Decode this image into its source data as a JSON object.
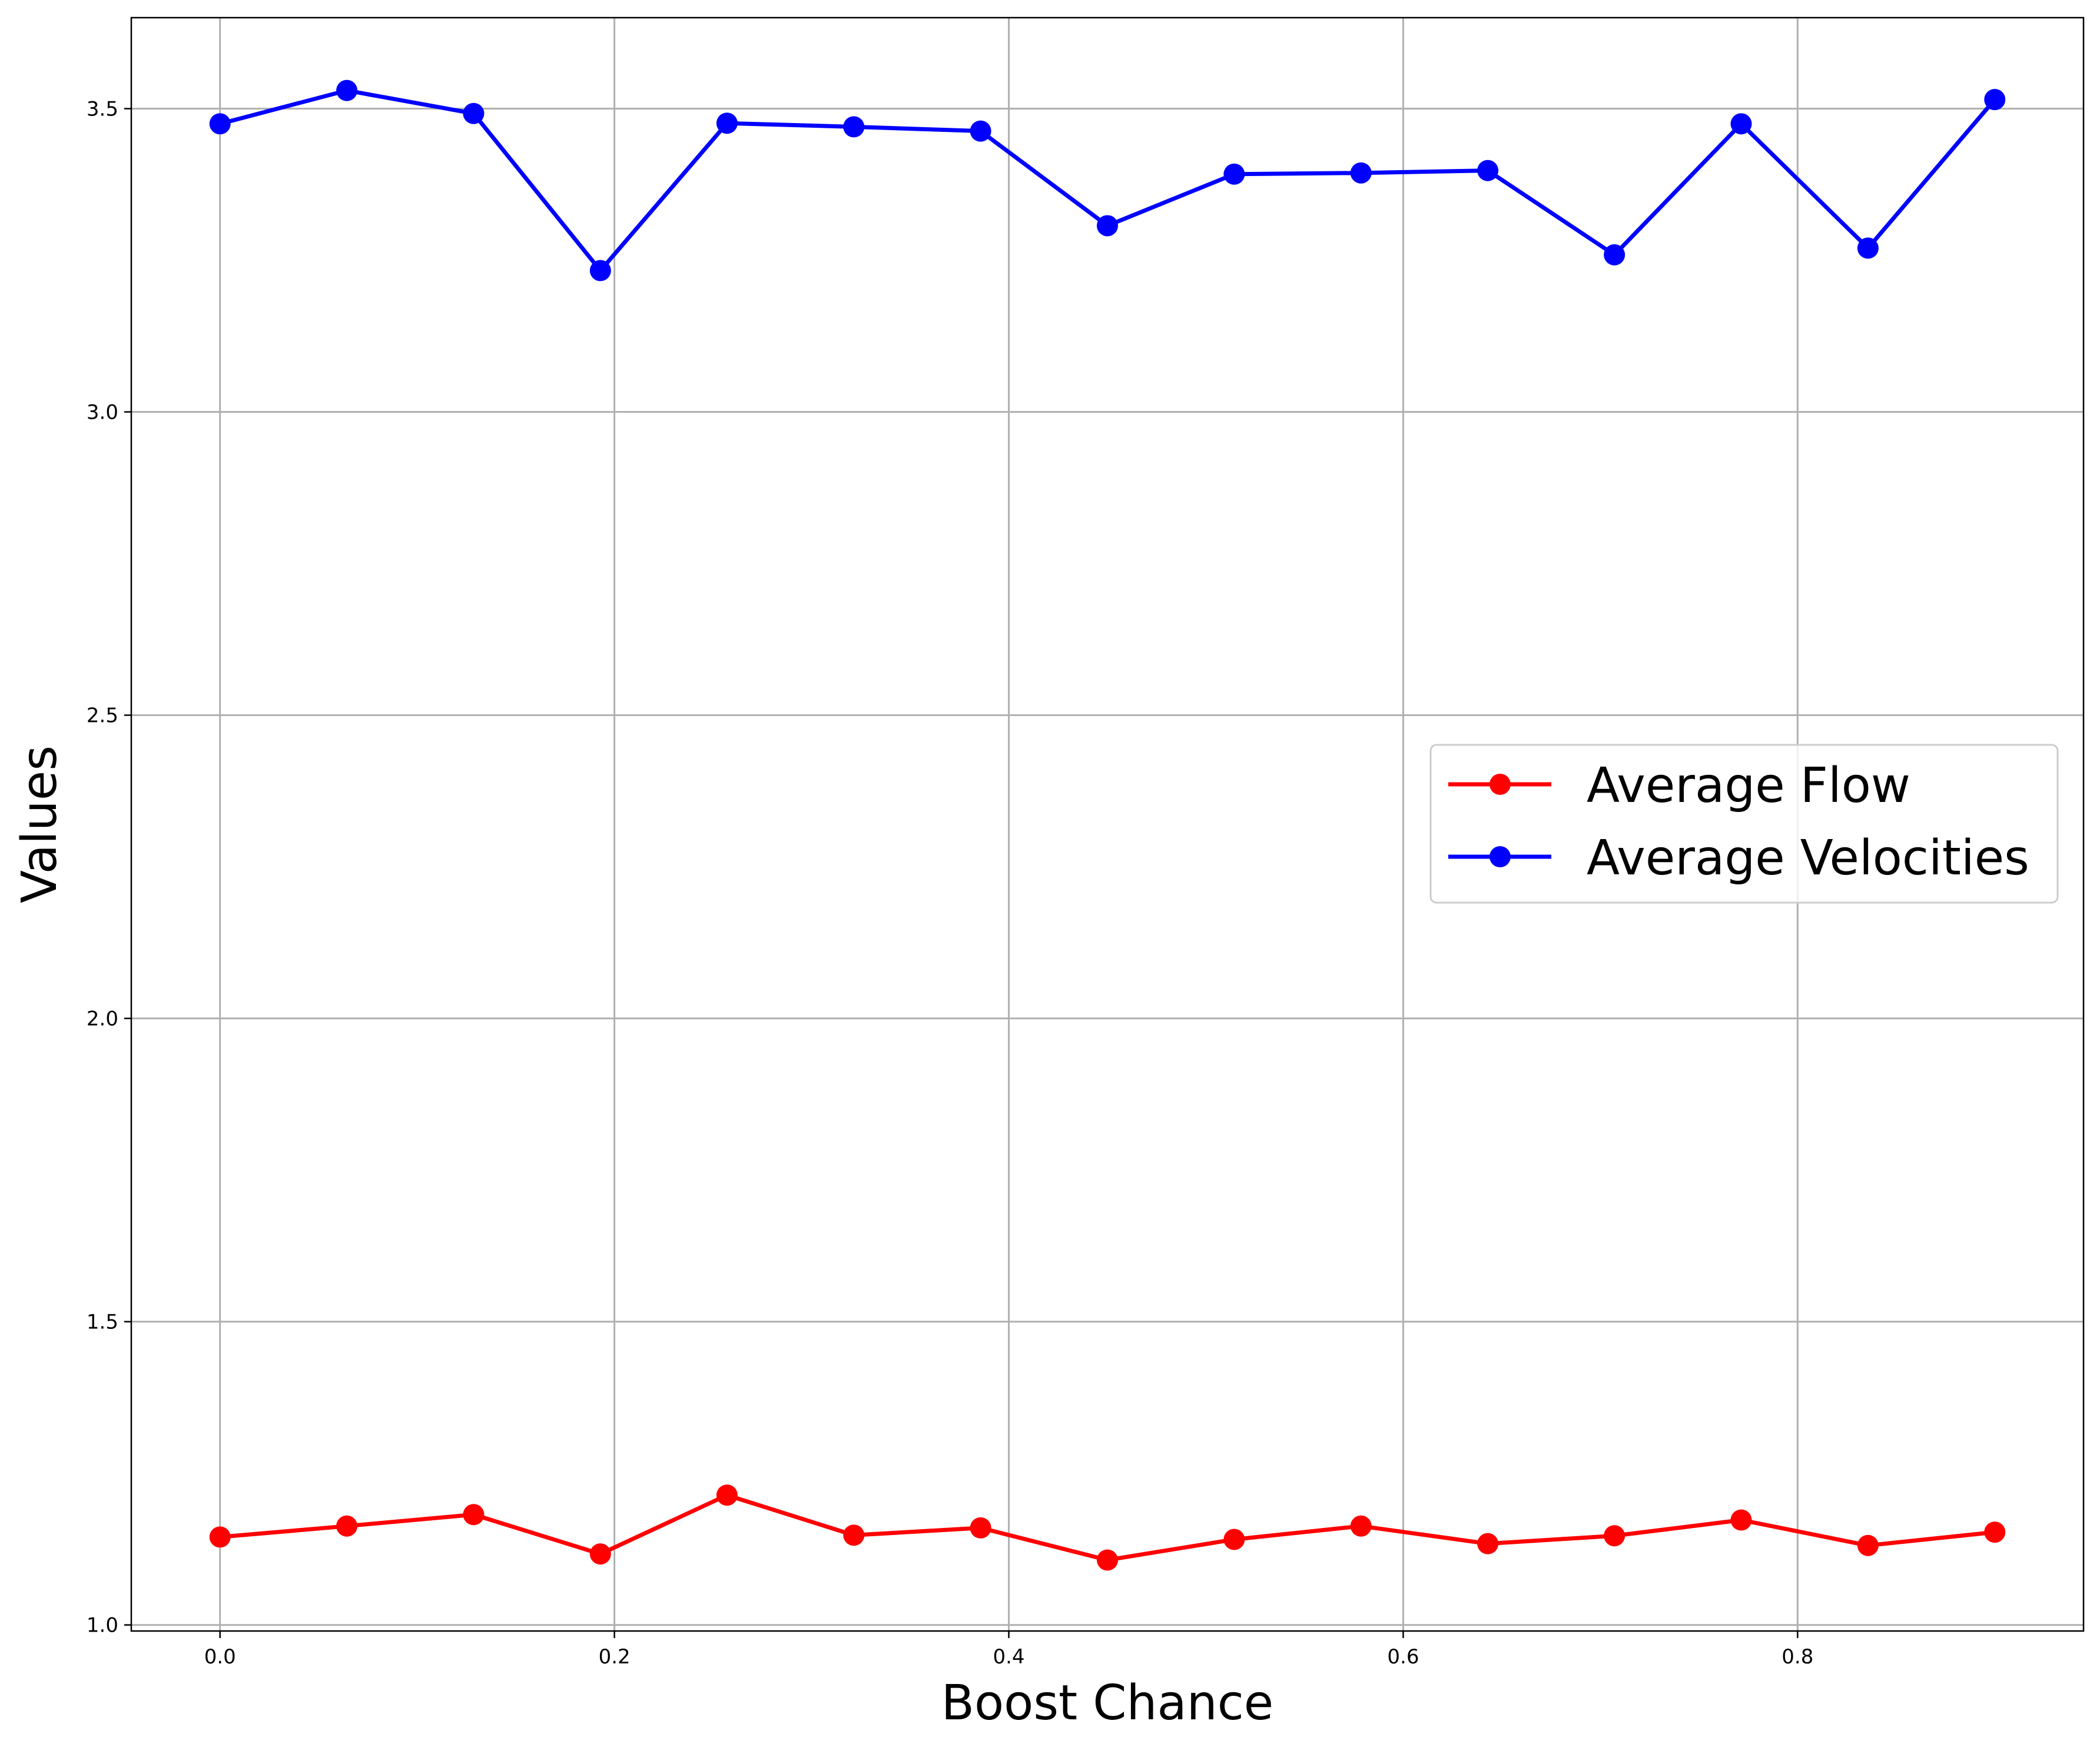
{
  "chart_data": {
    "type": "line",
    "title": "",
    "xlabel": "Boost Chance",
    "ylabel": "Values",
    "xlim": [
      -0.045,
      0.945
    ],
    "ylim": [
      0.99,
      3.65
    ],
    "x_ticks": [
      0.0,
      0.2,
      0.4,
      0.6,
      0.8
    ],
    "x_tick_labels": [
      "0.0",
      "0.2",
      "0.4",
      "0.6",
      "0.8"
    ],
    "y_ticks": [
      1.0,
      1.5,
      2.0,
      2.5,
      3.0,
      3.5
    ],
    "y_tick_labels": [
      "1.0",
      "1.5",
      "2.0",
      "2.5",
      "3.0",
      "3.5"
    ],
    "grid": true,
    "legend_position": "center-right",
    "x": [
      0.0,
      0.0643,
      0.1286,
      0.1929,
      0.2571,
      0.3214,
      0.3857,
      0.45,
      0.5143,
      0.5786,
      0.6429,
      0.7071,
      0.7714,
      0.8357,
      0.9
    ],
    "series": [
      {
        "name": "Average Flow",
        "color": "#ff0000",
        "marker": "circle",
        "values": [
          1.145,
          1.163,
          1.182,
          1.117,
          1.214,
          1.148,
          1.16,
          1.107,
          1.141,
          1.163,
          1.134,
          1.147,
          1.173,
          1.131,
          1.153
        ]
      },
      {
        "name": "Average Velocities",
        "color": "#0000ff",
        "marker": "circle",
        "values": [
          3.475,
          3.53,
          3.492,
          3.233,
          3.476,
          3.47,
          3.463,
          3.307,
          3.392,
          3.394,
          3.398,
          3.259,
          3.475,
          3.27,
          3.515
        ]
      }
    ]
  }
}
